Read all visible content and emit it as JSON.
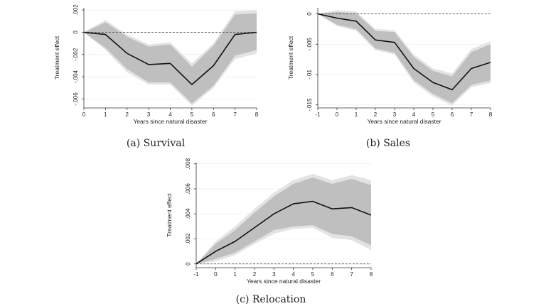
{
  "chart_data": [
    {
      "type": "line",
      "caption": "(a) Survival",
      "xlabel": "Years since natural disaster",
      "ylabel": "Treatment effect",
      "x": [
        0,
        1,
        2,
        3,
        4,
        5,
        6,
        7,
        8
      ],
      "xticks": [
        "0",
        "1",
        "2",
        "3",
        "4",
        "5",
        "6",
        "7",
        "8"
      ],
      "yticks": [
        0.002,
        0,
        -0.002,
        -0.004,
        -0.006
      ],
      "ytick_labels": [
        ".002",
        "0",
        "-.002",
        "-.004",
        "-.006"
      ],
      "xlim": [
        0,
        8
      ],
      "ylim": [
        -0.0068,
        0.0022
      ],
      "reference_line": 0,
      "series": [
        {
          "estimate": [
            0,
            -0.0002,
            -0.0019,
            -0.0029,
            -0.0028,
            -0.0047,
            -0.003,
            -0.0002,
            0
          ],
          "ci_inner_low": [
            0,
            -0.0014,
            -0.0033,
            -0.0045,
            -0.0045,
            -0.0064,
            -0.0048,
            -0.0021,
            -0.0016
          ],
          "ci_inner_high": [
            0,
            0.0009,
            -0.0004,
            -0.0013,
            -0.0011,
            -0.0031,
            -0.0012,
            0.0016,
            0.0017
          ],
          "ci_outer_low": [
            0,
            -0.0016,
            -0.0036,
            -0.0047,
            -0.0047,
            -0.0066,
            -0.005,
            -0.0024,
            -0.0019
          ],
          "ci_outer_high": [
            0,
            0.0011,
            -0.0002,
            -0.0011,
            -0.0009,
            -0.0028,
            -0.001,
            0.0019,
            0.002
          ]
        }
      ],
      "grid": true
    },
    {
      "type": "line",
      "caption": "(b) Sales",
      "xlabel": "Years since natural disaster",
      "ylabel": "Treatment effect",
      "x": [
        -1,
        0,
        1,
        2,
        3,
        4,
        5,
        6,
        7,
        8
      ],
      "xticks": [
        "-1",
        "0",
        "1",
        "2",
        "3",
        "4",
        "5",
        "6",
        "7",
        "8"
      ],
      "yticks": [
        0,
        -0.005,
        -0.01,
        -0.015
      ],
      "ytick_labels": [
        "0",
        "-.005",
        "-.01",
        "-.015"
      ],
      "xlim": [
        -1,
        8
      ],
      "ylim": [
        -0.0155,
        0.001
      ],
      "reference_line": 0,
      "series": [
        {
          "estimate": [
            0,
            -0.0007,
            -0.0012,
            -0.0043,
            -0.0047,
            -0.009,
            -0.0113,
            -0.0125,
            -0.009,
            -0.008
          ],
          "ci_inner_low": [
            0,
            -0.0018,
            -0.0025,
            -0.0057,
            -0.0064,
            -0.0109,
            -0.0132,
            -0.0147,
            -0.0117,
            -0.011
          ],
          "ci_inner_high": [
            0,
            0.0003,
            0.0001,
            -0.0028,
            -0.003,
            -0.0071,
            -0.0094,
            -0.0103,
            -0.0063,
            -0.005
          ],
          "ci_outer_low": [
            0,
            -0.002,
            -0.0028,
            -0.006,
            -0.0067,
            -0.0113,
            -0.0136,
            -0.0151,
            -0.0121,
            -0.0114
          ],
          "ci_outer_high": [
            0,
            0.0006,
            0.0004,
            -0.0025,
            -0.0027,
            -0.0067,
            -0.009,
            -0.0098,
            -0.0058,
            -0.0045
          ]
        }
      ],
      "grid": true
    },
    {
      "type": "line",
      "caption": "(c) Relocation",
      "xlabel": "Years since natural disaster",
      "ylabel": "Treatment effect",
      "x": [
        -1,
        0,
        1,
        2,
        3,
        4,
        5,
        6,
        7,
        8
      ],
      "xticks": [
        "-1",
        "0",
        "1",
        "2",
        "3",
        "4",
        "5",
        "6",
        "7",
        "8"
      ],
      "yticks": [
        0.008,
        0.006,
        0.004,
        0.002,
        0
      ],
      "ytick_labels": [
        ".008",
        ".006",
        ".004",
        ".002",
        "0"
      ],
      "xlim": [
        -1,
        8
      ],
      "ylim": [
        -0.0003,
        0.0081
      ],
      "reference_line": 0,
      "series": [
        {
          "estimate": [
            0,
            0.001,
            0.0018,
            0.0029,
            0.004,
            0.0048,
            0.005,
            0.0044,
            0.0045,
            0.0039
          ],
          "ci_inner_low": [
            0,
            0.0004,
            0.0009,
            0.0018,
            0.0027,
            0.003,
            0.0031,
            0.0024,
            0.0022,
            0.0015
          ],
          "ci_inner_high": [
            0,
            0.0016,
            0.0027,
            0.0041,
            0.0054,
            0.0064,
            0.0069,
            0.0064,
            0.0068,
            0.0063
          ],
          "ci_outer_low": [
            0,
            0.0002,
            0.0007,
            0.0016,
            0.0024,
            0.0028,
            0.0029,
            0.0021,
            0.0019,
            0.0011
          ],
          "ci_outer_high": [
            0,
            0.0018,
            0.003,
            0.0044,
            0.0057,
            0.0067,
            0.0072,
            0.0067,
            0.0071,
            0.0067
          ]
        }
      ],
      "grid": true
    }
  ],
  "colors": {
    "outer_band": "#e3e3e3",
    "inner_band": "#bfbfbf",
    "estimate_line": "#111111",
    "reference_line": "#555555",
    "axis": "#333333",
    "grid": "#eeeeee"
  }
}
